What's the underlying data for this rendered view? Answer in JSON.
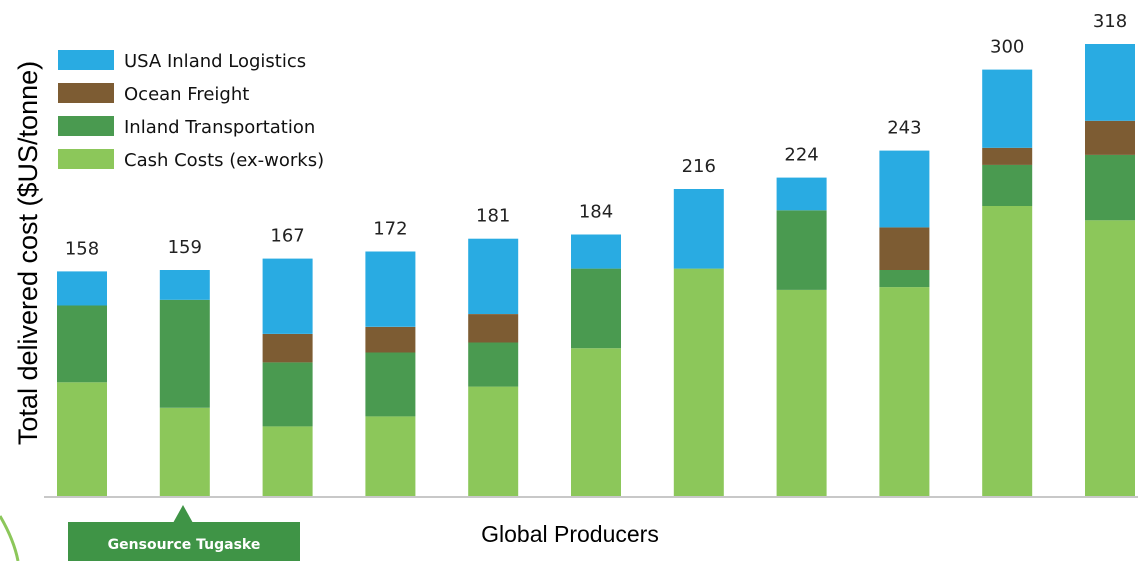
{
  "chart_data": {
    "type": "bar",
    "stacked": true,
    "ylabel": "Total delivered cost ($US/tonne)",
    "xlabel": "Global Producers",
    "ylim": [
      0,
      318
    ],
    "grid": false,
    "legend_position": "top-left",
    "categories": [
      "",
      "Gensource Tugaske",
      "",
      "",
      "",
      "",
      "",
      "",
      "",
      "",
      ""
    ],
    "series": [
      {
        "name": "Cash Costs (ex-works)",
        "color": "#8cc75a",
        "values": [
          80,
          62,
          49,
          56,
          77,
          104,
          160,
          145,
          147,
          204,
          194
        ]
      },
      {
        "name": "Inland Transportation",
        "color": "#4a9a50",
        "values": [
          54,
          76,
          45,
          45,
          31,
          56,
          0,
          56,
          12,
          29,
          46
        ]
      },
      {
        "name": "Ocean Freight",
        "color": "#7d5c33",
        "values": [
          0,
          0,
          20,
          18,
          20,
          0,
          0,
          0,
          30,
          12,
          24
        ]
      },
      {
        "name": "USA Inland Logistics",
        "color": "#29abe2",
        "values": [
          24,
          21,
          53,
          53,
          53,
          24,
          56,
          23,
          54,
          55,
          54
        ]
      }
    ],
    "totals": [
      "158",
      "159",
      "167",
      "172",
      "181",
      "184",
      "216",
      "224",
      "243",
      "300",
      "318"
    ],
    "callout": "Gensource Tugaske"
  }
}
